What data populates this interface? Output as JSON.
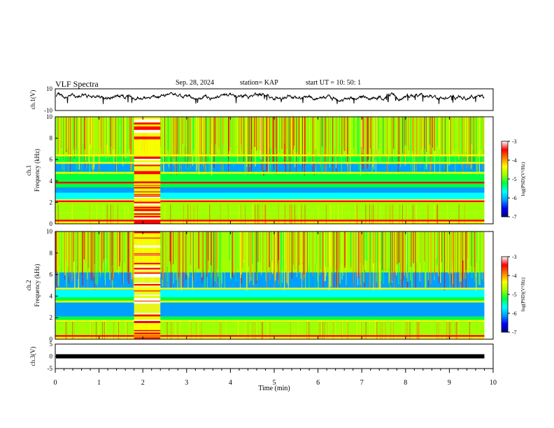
{
  "header": {
    "title": "VLF Spectra",
    "date": "Sep. 28, 2024",
    "station": "station= KAP",
    "start": "start  UT  =   10: 50: 1"
  },
  "chart_data": [
    {
      "type": "line",
      "panel": "ch1_waveform",
      "ylabel": "ch.1(V)",
      "ylim": [
        -10,
        10
      ],
      "yticks": [
        "10",
        "-10"
      ],
      "xlim": [
        0,
        10
      ],
      "color": "#000000",
      "approx_level_V": 2.5,
      "approx_range_V": [
        -4,
        8
      ]
    },
    {
      "type": "heatmap",
      "panel": "ch1_spectrogram",
      "ylabel": "ch.1\nFrequency (kHz)",
      "ylim": [
        0,
        10
      ],
      "yticks": [
        0,
        2,
        4,
        6,
        8,
        10
      ],
      "xlim": [
        0,
        10
      ],
      "x_end_min": 9.8,
      "bands": [
        {
          "f": [
            0.0,
            0.3
          ],
          "level": -4.5
        },
        {
          "f": [
            0.3,
            1.0
          ],
          "level": -5.0
        },
        {
          "f": [
            1.0,
            2.0
          ],
          "level": -5.0
        },
        {
          "f": [
            2.0,
            2.3
          ],
          "level": -4.2
        },
        {
          "f": [
            2.3,
            2.9
          ],
          "level": -5.5
        },
        {
          "f": [
            2.9,
            3.4
          ],
          "level": -5.9
        },
        {
          "f": [
            3.4,
            4.0
          ],
          "level": -5.2
        },
        {
          "f": [
            4.0,
            4.9
          ],
          "level": -5.1
        },
        {
          "f": [
            4.9,
            5.6
          ],
          "level": -6.1
        },
        {
          "f": [
            5.6,
            6.3
          ],
          "level": -5.2
        },
        {
          "f": [
            6.3,
            10.0
          ],
          "level": -5.0
        }
      ],
      "lines": [
        {
          "f": 0.3,
          "level": -3.5
        },
        {
          "f": 2.1,
          "level": -3.3
        },
        {
          "f": 3.85,
          "level": -3.3
        },
        {
          "f": 4.75,
          "level": -4.2
        },
        {
          "f": 5.7,
          "level": -4.2
        },
        {
          "f": 6.4,
          "level": -4.5
        }
      ],
      "event": {
        "t": [
          1.8,
          2.4
        ],
        "level": -3.6
      }
    },
    {
      "type": "heatmap",
      "panel": "ch2_spectrogram",
      "ylabel": "ch.2\nFrequency (kHz)",
      "ylim": [
        0,
        10
      ],
      "yticks": [
        0,
        2,
        4,
        6,
        8,
        10
      ],
      "xlim": [
        0,
        10
      ],
      "x_end_min": 9.8,
      "bands": [
        {
          "f": [
            0.0,
            0.3
          ],
          "level": -4.5
        },
        {
          "f": [
            0.3,
            1.6
          ],
          "level": -5.0
        },
        {
          "f": [
            1.6,
            2.1
          ],
          "level": -5.2
        },
        {
          "f": [
            2.1,
            3.4
          ],
          "level": -6.0
        },
        {
          "f": [
            3.4,
            3.9
          ],
          "level": -5.1
        },
        {
          "f": [
            3.9,
            4.6
          ],
          "level": -5.5
        },
        {
          "f": [
            4.6,
            6.2
          ],
          "level": -6.1
        },
        {
          "f": [
            6.2,
            10.0
          ],
          "level": -5.0
        }
      ],
      "lines": [
        {
          "f": 0.3,
          "level": -3.5
        },
        {
          "f": 1.7,
          "level": -4.3
        },
        {
          "f": 3.5,
          "level": -4.3
        },
        {
          "f": 4.7,
          "level": -4.5
        }
      ],
      "event": {
        "t": [
          1.8,
          2.4
        ],
        "level": -3.6
      }
    },
    {
      "type": "line",
      "panel": "ch3_signal",
      "ylabel": "ch.3(V)",
      "ylim": [
        -5,
        5
      ],
      "yticks": [
        "5",
        "0",
        "-5"
      ],
      "xlim": [
        0,
        10
      ],
      "approx_level_V": 0,
      "color": "#000000"
    }
  ],
  "xaxis": {
    "label": "Time  (min)",
    "ticks": [
      "0",
      "1",
      "2",
      "3",
      "4",
      "5",
      "6",
      "7",
      "8",
      "9",
      "10"
    ]
  },
  "colorbar": {
    "label": "log(PSD)(V²/Hz)",
    "range": [
      -7,
      -3
    ],
    "ticks": [
      "-3",
      "-4",
      "-5",
      "-6",
      "-7"
    ],
    "colors": [
      "#000080",
      "#0000ff",
      "#00a0ff",
      "#00ffff",
      "#00ff40",
      "#a0ff00",
      "#ffff00",
      "#ff8000",
      "#ff0000",
      "#ffffff"
    ]
  }
}
